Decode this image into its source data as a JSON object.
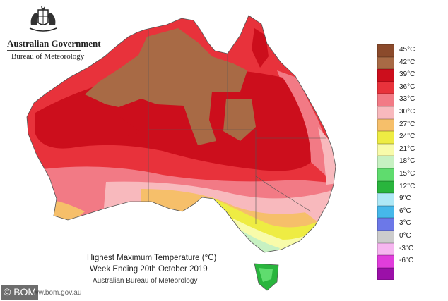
{
  "agency": {
    "title": "Australian Government",
    "subtitle": "Bureau of Meteorology"
  },
  "legend": {
    "items": [
      {
        "label": "45°C",
        "color": "#8b4a2b"
      },
      {
        "label": "42°C",
        "color": "#a86a45"
      },
      {
        "label": "39°C",
        "color": "#cc0e1c"
      },
      {
        "label": "36°C",
        "color": "#e8323b"
      },
      {
        "label": "33°C",
        "color": "#f27a85"
      },
      {
        "label": "30°C",
        "color": "#f8b9bd"
      },
      {
        "label": "27°C",
        "color": "#f6bf6a"
      },
      {
        "label": "24°C",
        "color": "#eeec43"
      },
      {
        "label": "21°C",
        "color": "#f8fbaa"
      },
      {
        "label": "18°C",
        "color": "#c7f1c2"
      },
      {
        "label": "15°C",
        "color": "#5fdc6e"
      },
      {
        "label": "12°C",
        "color": "#29b53d"
      },
      {
        "label": "9°C",
        "color": "#aee8f6"
      },
      {
        "label": "6°C",
        "color": "#46b8ea"
      },
      {
        "label": "3°C",
        "color": "#6c78e8"
      },
      {
        "label": "0°C",
        "color": "#cccccc"
      },
      {
        "label": "-3°C",
        "color": "#f6b6f0"
      },
      {
        "label": "-6°C",
        "color": "#e03ddb"
      },
      {
        "label": "",
        "color": "#9b10a8"
      }
    ]
  },
  "caption": {
    "line1": "Highest Maximum Temperature (°C)",
    "line2": "Week Ending 20th October 2019",
    "line3": "Australian Bureau of Meteorology"
  },
  "url": "www.bom.gov.au",
  "credit": "© BOM"
}
